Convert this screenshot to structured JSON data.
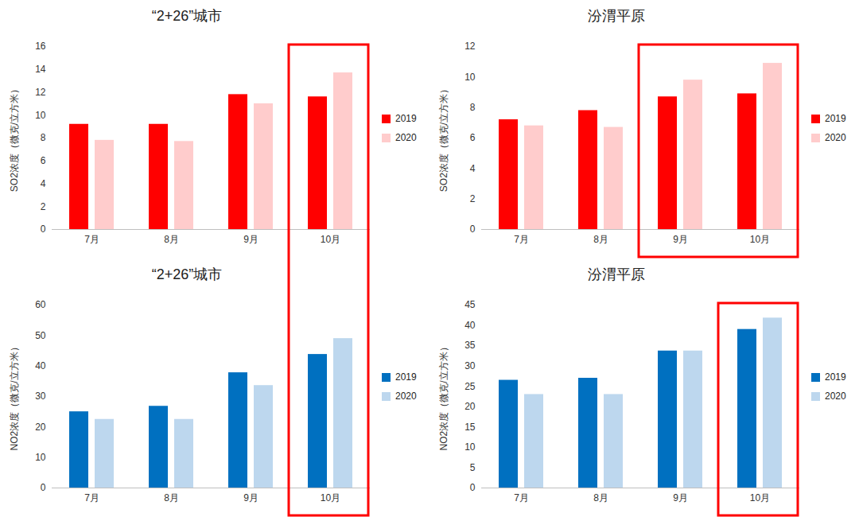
{
  "chart_data": [
    {
      "type": "bar",
      "title": "“2+26”城市",
      "y_label": "SO2浓度（微克/立方米）",
      "categories": [
        "7月",
        "8月",
        "9月",
        "10月"
      ],
      "series": [
        {
          "name": "2019",
          "color": "#ff0000",
          "values": [
            9.2,
            9.2,
            11.8,
            11.6
          ]
        },
        {
          "name": "2020",
          "color": "#ffcccc",
          "values": [
            7.8,
            7.7,
            11.0,
            13.7
          ]
        }
      ],
      "ylim": [
        0,
        16
      ],
      "yticks": [
        0,
        2,
        4,
        6,
        8,
        10,
        12,
        14,
        16
      ],
      "grid": false,
      "legend": "right"
    },
    {
      "type": "bar",
      "title": "汾渭平原",
      "y_label": "SO2浓度（微克/立方米）",
      "categories": [
        "7月",
        "8月",
        "9月",
        "10月"
      ],
      "series": [
        {
          "name": "2019",
          "color": "#ff0000",
          "values": [
            7.2,
            7.8,
            8.7,
            8.9
          ]
        },
        {
          "name": "2020",
          "color": "#ffcccc",
          "values": [
            6.8,
            6.7,
            9.8,
            10.9
          ]
        }
      ],
      "ylim": [
        0,
        12
      ],
      "yticks": [
        0,
        2,
        4,
        6,
        8,
        10,
        12
      ],
      "grid": false,
      "legend": "right"
    },
    {
      "type": "bar",
      "title": "“2+26”城市",
      "y_label": "NO2浓度（微克/立方米）",
      "categories": [
        "7月",
        "8月",
        "9月",
        "10月"
      ],
      "series": [
        {
          "name": "2019",
          "color": "#0070c0",
          "values": [
            25.0,
            26.8,
            37.8,
            43.8
          ]
        },
        {
          "name": "2020",
          "color": "#bdd7ee",
          "values": [
            22.5,
            22.5,
            33.6,
            49.0
          ]
        }
      ],
      "ylim": [
        0,
        60
      ],
      "yticks": [
        0,
        10,
        20,
        30,
        40,
        50,
        60
      ],
      "grid": false,
      "legend": "right"
    },
    {
      "type": "bar",
      "title": "汾渭平原",
      "y_label": "NO2浓度（微克/立方米）",
      "categories": [
        "7月",
        "8月",
        "9月",
        "10月"
      ],
      "series": [
        {
          "name": "2019",
          "color": "#0070c0",
          "values": [
            26.5,
            27.0,
            33.7,
            39.0
          ]
        },
        {
          "name": "2020",
          "color": "#bdd7ee",
          "values": [
            23.0,
            23.0,
            33.7,
            41.8
          ]
        }
      ],
      "ylim": [
        0,
        45
      ],
      "yticks": [
        0,
        5,
        10,
        15,
        20,
        25,
        30,
        35,
        40,
        45
      ],
      "grid": false,
      "legend": "right"
    }
  ]
}
